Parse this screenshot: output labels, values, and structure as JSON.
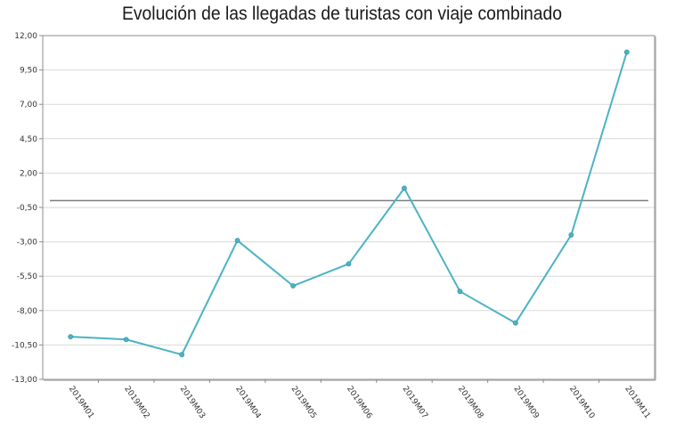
{
  "chart_data": {
    "type": "line",
    "title": "Evolución de las llegadas de turistas con viaje combinado",
    "xlabel": "",
    "ylabel": "",
    "categories": [
      "2019M01",
      "2019M02",
      "2019M03",
      "2019M04",
      "2019M05",
      "2019M06",
      "2019M07",
      "2019M08",
      "2019M09",
      "2019M10",
      "2019M11"
    ],
    "series": [
      {
        "name": "Llegadas de turistas con viaje combinado",
        "values": [
          -9.9,
          -10.1,
          -11.2,
          -2.9,
          -6.2,
          -4.6,
          0.9,
          -6.6,
          -8.9,
          -2.5,
          10.8
        ]
      }
    ],
    "ylim": [
      -13,
      12
    ],
    "yticks": [
      12,
      9.5,
      7,
      4.5,
      2,
      -0.5,
      -3,
      -5.5,
      -8,
      -10.5,
      -13
    ],
    "ytick_labels": [
      "12,00",
      "9,50",
      "7,00",
      "4,50",
      "2,00",
      "-0,50",
      "-3,00",
      "-5,50",
      "-8,00",
      "-10,50",
      "-13,00"
    ],
    "reference_line": 0,
    "grid": true,
    "colors": {
      "line": "#4bb3c3",
      "grid": "#d9d9d9",
      "axis": "#8c8c8c",
      "reference": "#666666"
    }
  }
}
